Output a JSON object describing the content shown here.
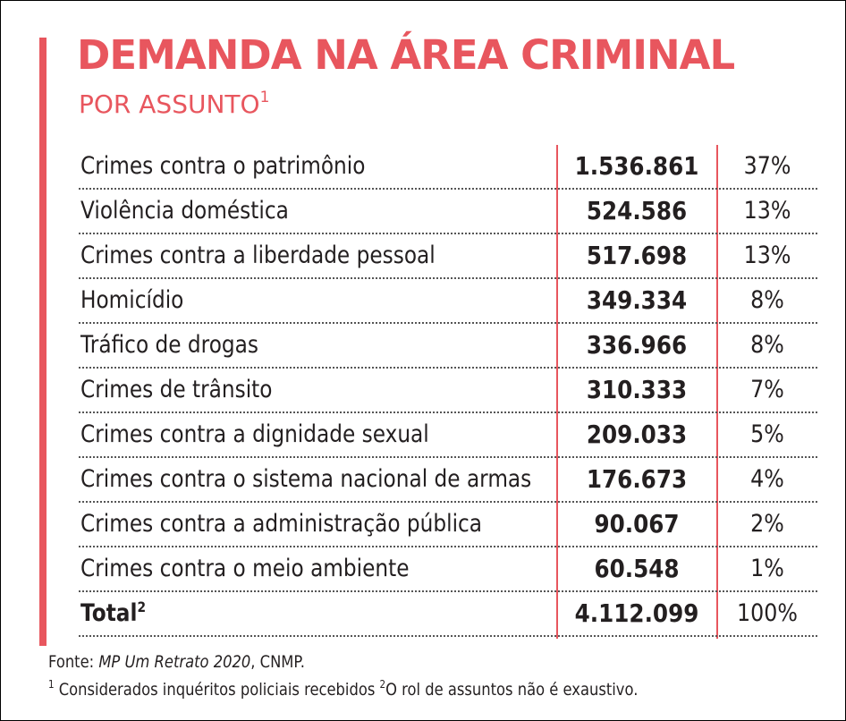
{
  "title": "DEMANDA NA ÁREA CRIMINAL",
  "subtitle": "POR ASSUNTO",
  "subtitle_note": "1",
  "rows": [
    {
      "label": "Crimes contra o patrimônio",
      "value": "1.536.861",
      "pct": "37%"
    },
    {
      "label": "Violência doméstica",
      "value": "524.586",
      "pct": "13%"
    },
    {
      "label": "Crimes contra a liberdade pessoal",
      "value": "517.698",
      "pct": "13%"
    },
    {
      "label": "Homicídio",
      "value": "349.334",
      "pct": "8%"
    },
    {
      "label": "Tráfico de drogas",
      "value": "336.966",
      "pct": "8%"
    },
    {
      "label": "Crimes de trânsito",
      "value": "310.333",
      "pct": "7%"
    },
    {
      "label": "Crimes contra a dignidade sexual",
      "value": "209.033",
      "pct": "5%"
    },
    {
      "label": "Crimes contra o sistema nacional de armas",
      "value": "176.673",
      "pct": "4%"
    },
    {
      "label": "Crimes contra a administração pública",
      "value": "90.067",
      "pct": "2%"
    },
    {
      "label": "Crimes contra o meio ambiente",
      "value": "60.548",
      "pct": "1%"
    }
  ],
  "total": {
    "label": "Total",
    "note": "2",
    "value": "4.112.099",
    "pct": "100%"
  },
  "footer": {
    "source_prefix": "Fonte: ",
    "source_title": "MP Um Retrato 2020",
    "source_suffix": ", CNMP.",
    "note1_marker": "1",
    "note1_text": " Considerados inquéritos policiais recebidos  ",
    "note2_marker": "2",
    "note2_text": "O rol de assuntos não é exaustivo."
  },
  "colors": {
    "accent": "#e8565e",
    "text": "#231f20"
  }
}
